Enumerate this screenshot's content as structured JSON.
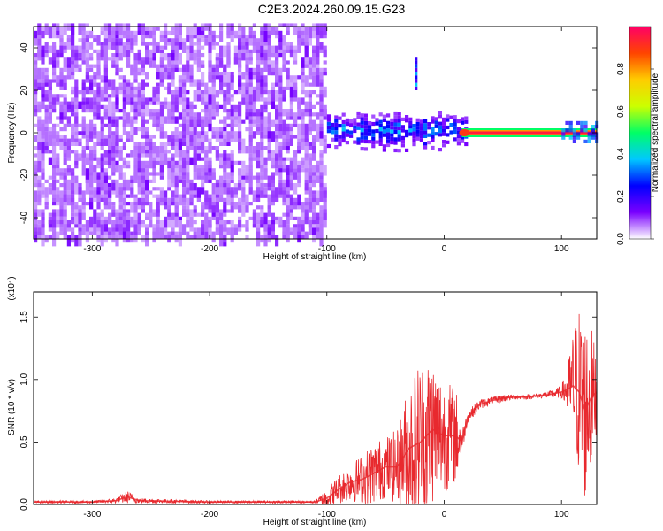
{
  "figure_title": "C2E3.2024.260.09.15.G23",
  "colors": {
    "noise": "#7a2cf0",
    "noise_light": "#c9a6ff",
    "snr_line": "#e8292e",
    "frame": "#000000"
  },
  "chart_data": [
    {
      "type": "heatmap",
      "title": "C2E3.2024.260.09.15.G23",
      "xlabel": "Height of straight line (km)",
      "ylabel": "Frequency (Hz)",
      "xlim": [
        -350,
        130
      ],
      "ylim": [
        -50,
        50
      ],
      "xticks": [
        -300,
        -200,
        -100,
        0,
        100
      ],
      "yticks": [
        -40,
        -20,
        0,
        20,
        40
      ],
      "colorbar": {
        "label": "Normalized spectral amplitude",
        "range": [
          0,
          1
        ],
        "ticks": [
          "0.0",
          "0.2",
          "0.4",
          "0.6",
          "0.8"
        ],
        "tick_values": [
          0.0,
          0.2,
          0.4,
          0.6,
          0.8
        ],
        "colormap": [
          "#ffffff",
          "#7a00ff",
          "#0000ff",
          "#00c8ff",
          "#00ff66",
          "#ccff00",
          "#ffcc00",
          "#ff4400",
          "#ff0066"
        ]
      },
      "features": {
        "noise_region": {
          "x_range": [
            -350,
            -100
          ],
          "y_range": [
            -50,
            50
          ],
          "level": 0.1
        },
        "signal_band": {
          "x_range": [
            -100,
            20
          ],
          "center_hz": 0,
          "half_width_hz": 8,
          "level": 0.3
        },
        "tone": {
          "x_range": [
            15,
            130
          ],
          "frequency_hz": 0,
          "level": 0.95
        },
        "spike": {
          "x": -25,
          "y_range": [
            20,
            35
          ],
          "level": 0.4
        }
      }
    },
    {
      "type": "line",
      "xlabel": "Height of straight line (km)",
      "ylabel": "SNR (10 * v/v)",
      "y_scale_label": "(x10⁴)",
      "xlim": [
        -350,
        130
      ],
      "ylim": [
        0,
        1.7
      ],
      "xticks": [
        -300,
        -200,
        -100,
        0,
        100
      ],
      "yticks": [
        0.0,
        0.5,
        1.0,
        1.5
      ],
      "ytick_labels": [
        "0.0",
        "0.5",
        "1.0",
        "1.5"
      ],
      "series": [
        {
          "color": "#e8292e",
          "x": [
            -350,
            -300,
            -280,
            -270,
            -260,
            -200,
            -150,
            -110,
            -100,
            -90,
            -80,
            -70,
            -60,
            -50,
            -40,
            -30,
            -20,
            -10,
            0,
            10,
            15,
            20,
            30,
            40,
            50,
            60,
            70,
            80,
            90,
            100,
            105,
            110,
            115,
            120,
            125,
            130
          ],
          "y": [
            0.02,
            0.02,
            0.03,
            0.06,
            0.03,
            0.02,
            0.02,
            0.02,
            0.05,
            0.12,
            0.18,
            0.2,
            0.25,
            0.3,
            0.3,
            0.45,
            0.5,
            0.6,
            0.55,
            0.55,
            0.5,
            0.7,
            0.8,
            0.83,
            0.85,
            0.86,
            0.86,
            0.87,
            0.88,
            0.9,
            0.92,
            0.95,
            0.9,
            0.75,
            0.85,
            0.9
          ],
          "spread": [
            0.01,
            0.01,
            0.02,
            0.05,
            0.02,
            0.01,
            0.01,
            0.01,
            0.08,
            0.12,
            0.15,
            0.2,
            0.25,
            0.25,
            0.3,
            0.55,
            0.7,
            0.6,
            0.45,
            0.4,
            0.1,
            0.05,
            0.04,
            0.03,
            0.03,
            0.02,
            0.02,
            0.02,
            0.03,
            0.05,
            0.2,
            0.45,
            0.7,
            0.75,
            0.6,
            0.3
          ]
        }
      ]
    }
  ]
}
